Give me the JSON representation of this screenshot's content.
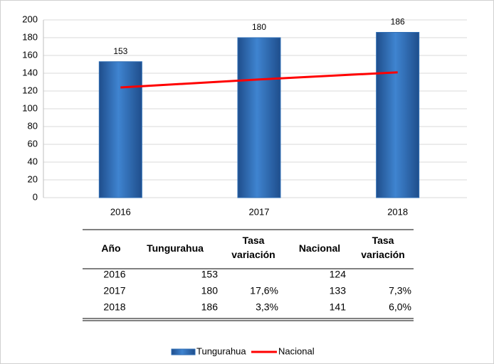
{
  "chart_data": {
    "type": "bar",
    "categories": [
      "2016",
      "2017",
      "2018"
    ],
    "series": [
      {
        "name": "Tungurahua",
        "type": "bar",
        "color": "#2e6db4",
        "values": [
          153,
          180,
          186
        ]
      },
      {
        "name": "Nacional",
        "type": "line",
        "color": "#ff0000",
        "values": [
          124,
          133,
          141
        ]
      }
    ],
    "ylim": [
      0,
      200
    ],
    "yticks": [
      0,
      20,
      40,
      60,
      80,
      100,
      120,
      140,
      160,
      180,
      200
    ],
    "grid": true,
    "legend": "bottom"
  },
  "table": {
    "columns": [
      "Año",
      "Tungurahua",
      "Tasa variación",
      "Nacional",
      "Tasa variación"
    ],
    "tungurahua_variation": [
      null,
      "17,6%",
      "3,3%"
    ],
    "nacional_variation": [
      null,
      "7,3%",
      "6,0%"
    ]
  }
}
